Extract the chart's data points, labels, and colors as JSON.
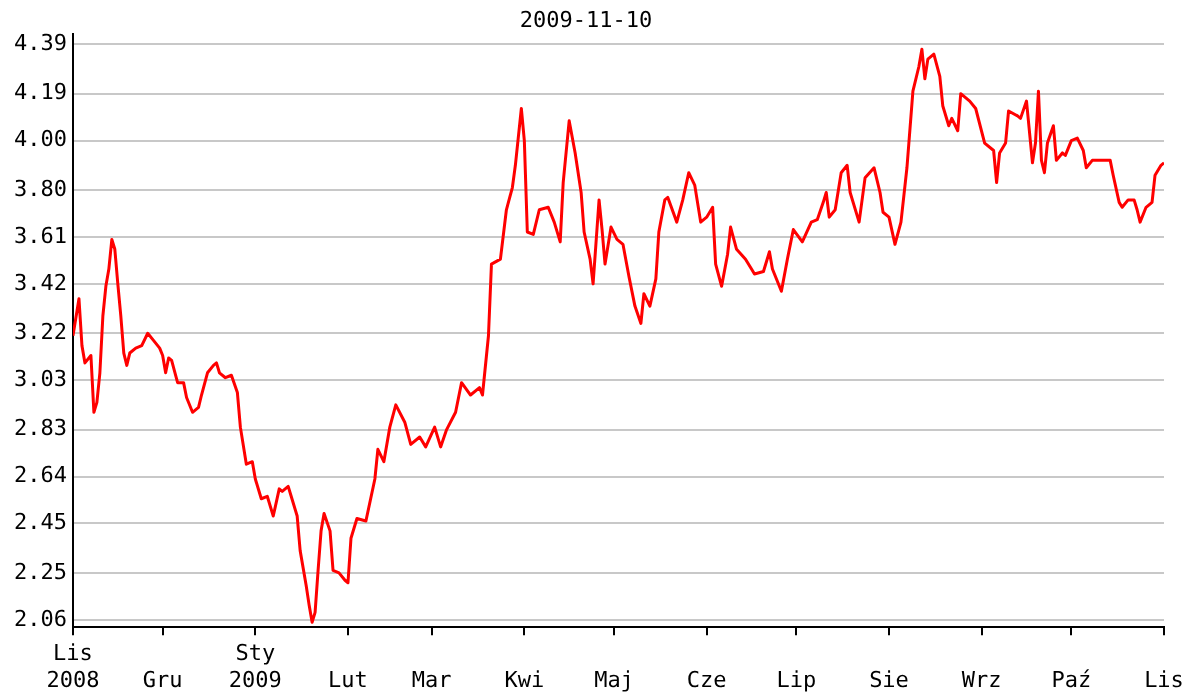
{
  "chart_data": {
    "type": "line",
    "title": "2009-11-10",
    "x": [
      "2008-11-01",
      "2008-11-03",
      "2008-11-04",
      "2008-11-05",
      "2008-11-07",
      "2008-11-08",
      "2008-11-09",
      "2008-11-10",
      "2008-11-11",
      "2008-11-12",
      "2008-11-13",
      "2008-11-14",
      "2008-11-15",
      "2008-11-16",
      "2008-11-17",
      "2008-11-18",
      "2008-11-19",
      "2008-11-20",
      "2008-11-22",
      "2008-11-24",
      "2008-11-26",
      "2008-11-28",
      "2008-11-30",
      "2008-12-01",
      "2008-12-02",
      "2008-12-03",
      "2008-12-04",
      "2008-12-06",
      "2008-12-08",
      "2008-12-09",
      "2008-12-11",
      "2008-12-13",
      "2008-12-14",
      "2008-12-16",
      "2008-12-18",
      "2008-12-19",
      "2008-12-20",
      "2008-12-22",
      "2008-12-24",
      "2008-12-26",
      "2008-12-27",
      "2008-12-29",
      "2008-12-31",
      "2009-01-01",
      "2009-01-03",
      "2009-01-05",
      "2009-01-07",
      "2009-01-09",
      "2009-01-10",
      "2009-01-12",
      "2009-01-13",
      "2009-01-15",
      "2009-01-16",
      "2009-01-18",
      "2009-01-19",
      "2009-01-20",
      "2009-01-21",
      "2009-01-22",
      "2009-01-23",
      "2009-01-24",
      "2009-01-26",
      "2009-01-27",
      "2009-01-29",
      "2009-01-31",
      "2009-02-01",
      "2009-02-02",
      "2009-02-04",
      "2009-02-07",
      "2009-02-10",
      "2009-02-11",
      "2009-02-13",
      "2009-02-15",
      "2009-02-17",
      "2009-02-20",
      "2009-02-22",
      "2009-02-25",
      "2009-02-27",
      "2009-03-02",
      "2009-03-04",
      "2009-03-06",
      "2009-03-09",
      "2009-03-11",
      "2009-03-14",
      "2009-03-17",
      "2009-03-18",
      "2009-03-20",
      "2009-03-21",
      "2009-03-24",
      "2009-03-26",
      "2009-03-28",
      "2009-03-29",
      "2009-03-31",
      "2009-04-01",
      "2009-04-02",
      "2009-04-04",
      "2009-04-06",
      "2009-04-09",
      "2009-04-11",
      "2009-04-13",
      "2009-04-14",
      "2009-04-16",
      "2009-04-18",
      "2009-04-20",
      "2009-04-21",
      "2009-04-23",
      "2009-04-24",
      "2009-04-26",
      "2009-04-27",
      "2009-04-28",
      "2009-04-30",
      "2009-05-02",
      "2009-05-04",
      "2009-05-06",
      "2009-05-08",
      "2009-05-10",
      "2009-05-11",
      "2009-05-13",
      "2009-05-15",
      "2009-05-16",
      "2009-05-18",
      "2009-05-19",
      "2009-05-22",
      "2009-05-24",
      "2009-05-26",
      "2009-05-28",
      "2009-05-30",
      "2009-06-01",
      "2009-06-03",
      "2009-06-04",
      "2009-06-06",
      "2009-06-08",
      "2009-06-09",
      "2009-06-11",
      "2009-06-14",
      "2009-06-16",
      "2009-06-17",
      "2009-06-20",
      "2009-06-22",
      "2009-06-23",
      "2009-06-26",
      "2009-06-28",
      "2009-06-30",
      "2009-07-03",
      "2009-07-06",
      "2009-07-08",
      "2009-07-10",
      "2009-07-11",
      "2009-07-12",
      "2009-07-14",
      "2009-07-16",
      "2009-07-18",
      "2009-07-19",
      "2009-07-22",
      "2009-07-24",
      "2009-07-27",
      "2009-07-29",
      "2009-07-30",
      "2009-08-01",
      "2009-08-03",
      "2009-08-05",
      "2009-08-07",
      "2009-08-09",
      "2009-08-11",
      "2009-08-12",
      "2009-08-13",
      "2009-08-14",
      "2009-08-16",
      "2009-08-18",
      "2009-08-19",
      "2009-08-21",
      "2009-08-22",
      "2009-08-24",
      "2009-08-25",
      "2009-08-28",
      "2009-08-30",
      "2009-09-02",
      "2009-09-05",
      "2009-09-06",
      "2009-09-07",
      "2009-09-09",
      "2009-09-10",
      "2009-09-13",
      "2009-09-14",
      "2009-09-16",
      "2009-09-18",
      "2009-09-19",
      "2009-09-20",
      "2009-09-21",
      "2009-09-22",
      "2009-09-23",
      "2009-09-25",
      "2009-09-26",
      "2009-09-28",
      "2009-09-29",
      "2009-10-01",
      "2009-10-03",
      "2009-10-05",
      "2009-10-06",
      "2009-10-08",
      "2009-10-11",
      "2009-10-14",
      "2009-10-15",
      "2009-10-17",
      "2009-10-18",
      "2009-10-20",
      "2009-10-22",
      "2009-10-23",
      "2009-10-24",
      "2009-10-26",
      "2009-10-28",
      "2009-10-29",
      "2009-10-31",
      "2009-11-01"
    ],
    "series": [
      {
        "color": "#ff0000",
        "values": [
          3.21,
          3.36,
          3.17,
          3.1,
          3.13,
          2.9,
          2.94,
          3.06,
          3.29,
          3.41,
          3.48,
          3.6,
          3.56,
          3.42,
          3.29,
          3.14,
          3.09,
          3.14,
          3.16,
          3.17,
          3.22,
          3.19,
          3.16,
          3.13,
          3.06,
          3.12,
          3.11,
          3.02,
          3.02,
          2.96,
          2.9,
          2.92,
          2.97,
          3.06,
          3.09,
          3.1,
          3.06,
          3.04,
          3.05,
          2.98,
          2.84,
          2.69,
          2.7,
          2.63,
          2.55,
          2.56,
          2.48,
          2.59,
          2.58,
          2.6,
          2.56,
          2.48,
          2.34,
          2.2,
          2.12,
          2.05,
          2.09,
          2.26,
          2.42,
          2.49,
          2.42,
          2.26,
          2.25,
          2.22,
          2.21,
          2.39,
          2.47,
          2.46,
          2.63,
          2.75,
          2.7,
          2.84,
          2.93,
          2.86,
          2.77,
          2.8,
          2.76,
          2.84,
          2.76,
          2.83,
          2.9,
          3.02,
          2.97,
          3.0,
          2.97,
          3.21,
          3.5,
          3.52,
          3.72,
          3.81,
          3.9,
          4.13,
          4.0,
          3.63,
          3.62,
          3.72,
          3.73,
          3.67,
          3.59,
          3.83,
          4.08,
          3.95,
          3.79,
          3.63,
          3.52,
          3.42,
          3.76,
          3.64,
          3.5,
          3.65,
          3.6,
          3.58,
          3.45,
          3.33,
          3.26,
          3.38,
          3.33,
          3.44,
          3.63,
          3.76,
          3.77,
          3.67,
          3.76,
          3.87,
          3.82,
          3.67,
          3.69,
          3.73,
          3.5,
          3.41,
          3.54,
          3.65,
          3.56,
          3.52,
          3.48,
          3.46,
          3.47,
          3.55,
          3.48,
          3.39,
          3.52,
          3.64,
          3.59,
          3.67,
          3.68,
          3.75,
          3.79,
          3.69,
          3.72,
          3.87,
          3.9,
          3.79,
          3.67,
          3.85,
          3.89,
          3.79,
          3.71,
          3.69,
          3.58,
          3.67,
          3.89,
          4.2,
          4.3,
          4.37,
          4.25,
          4.33,
          4.35,
          4.26,
          4.14,
          4.06,
          4.09,
          4.04,
          4.19,
          4.16,
          4.13,
          3.99,
          3.96,
          3.83,
          3.95,
          3.99,
          4.12,
          4.1,
          4.09,
          4.16,
          3.91,
          3.99,
          4.2,
          3.92,
          3.87,
          3.99,
          4.06,
          3.92,
          3.95,
          3.94,
          4.0,
          4.01,
          3.96,
          3.89,
          3.92,
          3.92,
          3.92,
          3.86,
          3.75,
          3.73,
          3.76,
          3.76,
          3.72,
          3.67,
          3.73,
          3.75,
          3.86,
          3.9,
          3.91
        ]
      }
    ],
    "xlim": [
      "2008-11-01",
      "2009-11-01"
    ],
    "xticks": [
      {
        "value": "2008-11-01",
        "label": "Lis\n2008"
      },
      {
        "value": "2008-12-01",
        "label": "Gru"
      },
      {
        "value": "2009-01-01",
        "label": "Sty\n2009"
      },
      {
        "value": "2009-02-01",
        "label": "Lut"
      },
      {
        "value": "2009-03-01",
        "label": "Mar"
      },
      {
        "value": "2009-04-01",
        "label": "Kwi"
      },
      {
        "value": "2009-05-01",
        "label": "Maj"
      },
      {
        "value": "2009-06-01",
        "label": "Cze"
      },
      {
        "value": "2009-07-01",
        "label": "Lip"
      },
      {
        "value": "2009-08-01",
        "label": "Sie"
      },
      {
        "value": "2009-09-01",
        "label": "Wrz"
      },
      {
        "value": "2009-10-01",
        "label": "Paź"
      },
      {
        "value": "2009-11-01",
        "label": "Lis"
      }
    ],
    "ylim": [
      2.03,
      4.43
    ],
    "yticks": [
      {
        "value": 2.06,
        "label": "2.06"
      },
      {
        "value": 2.25,
        "label": "2.25"
      },
      {
        "value": 2.45,
        "label": "2.45"
      },
      {
        "value": 2.64,
        "label": "2.64"
      },
      {
        "value": 2.83,
        "label": "2.83"
      },
      {
        "value": 3.03,
        "label": "3.03"
      },
      {
        "value": 3.22,
        "label": "3.22"
      },
      {
        "value": 3.42,
        "label": "3.42"
      },
      {
        "value": 3.61,
        "label": "3.61"
      },
      {
        "value": 3.8,
        "label": "3.80"
      },
      {
        "value": 4.0,
        "label": "4.00"
      },
      {
        "value": 4.19,
        "label": "4.19"
      },
      {
        "value": 4.39,
        "label": "4.39"
      }
    ],
    "grid": "y",
    "legend": false,
    "marker": "none",
    "line_style": "solid"
  }
}
